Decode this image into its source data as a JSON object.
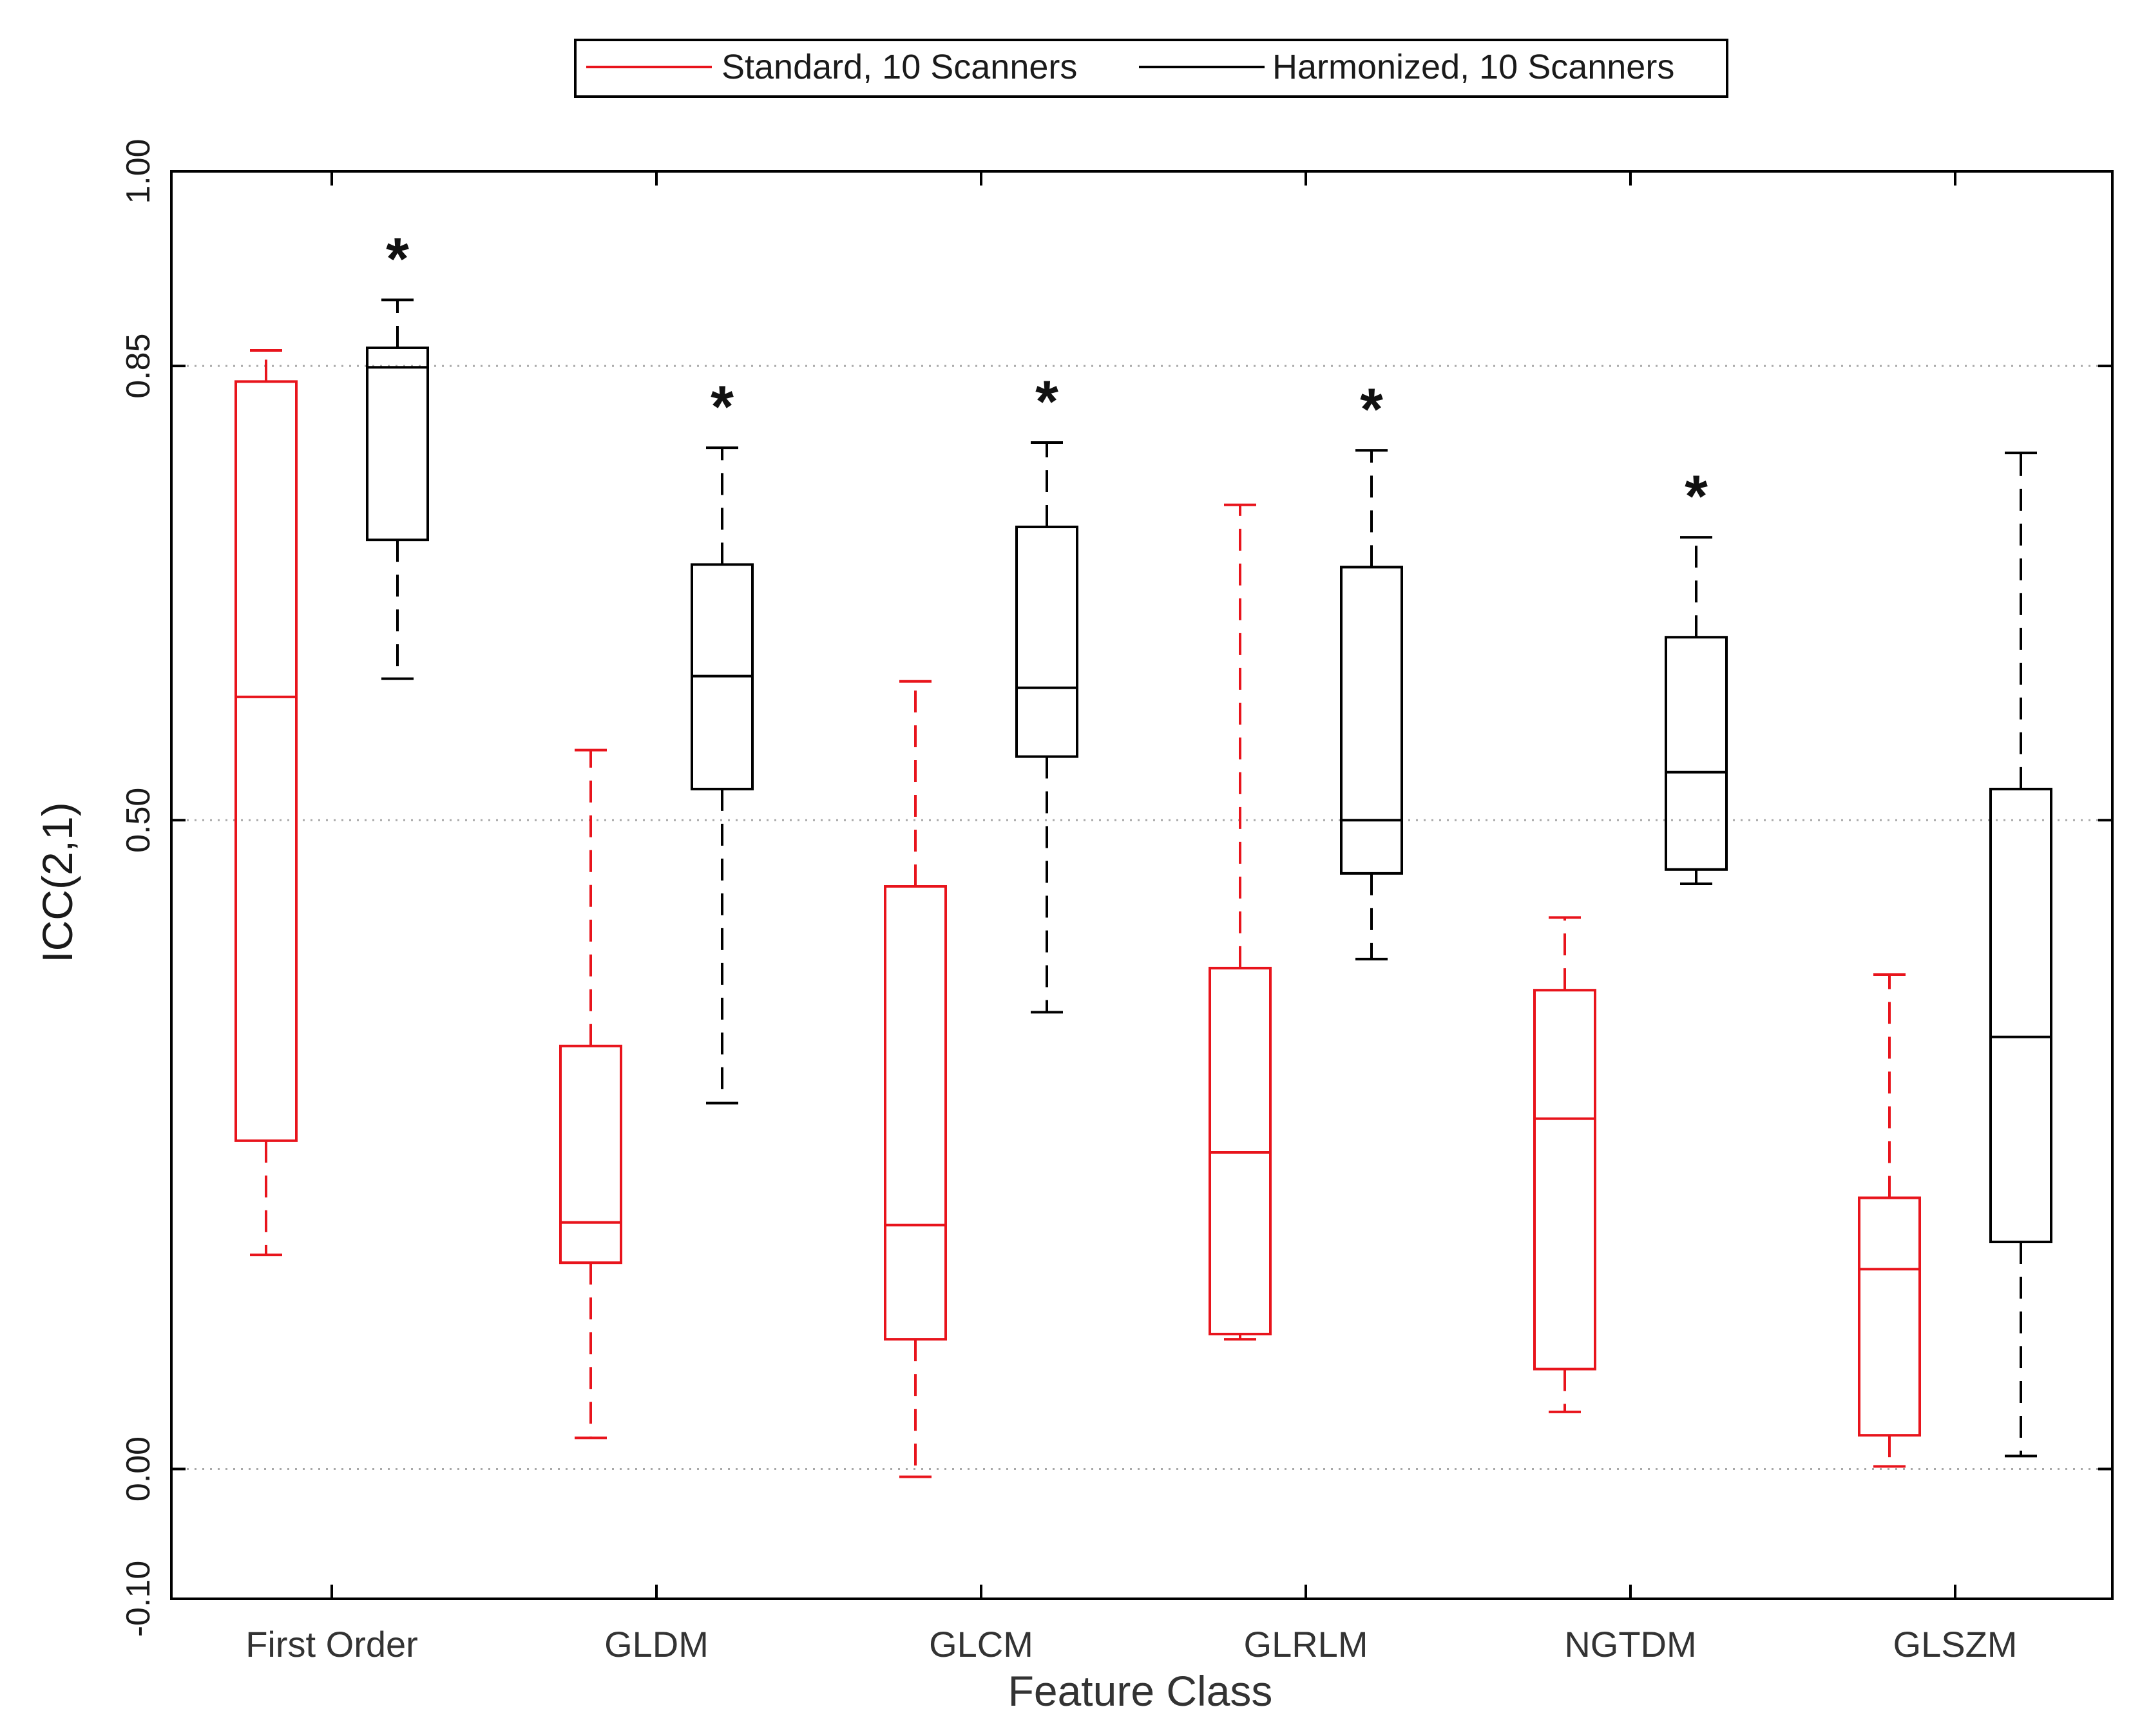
{
  "chart_data": {
    "type": "boxplot",
    "title": "",
    "xlabel": "Feature Class",
    "ylabel": "ICC(2,1)",
    "ylim": [
      -0.1,
      1.0
    ],
    "yticks": [
      -0.1,
      0.0,
      0.5,
      0.85,
      1.0
    ],
    "ytick_labels": [
      "-0.10",
      "0.00",
      "0.50",
      "0.85",
      "1.00"
    ],
    "grid_lines": [
      0.0,
      0.5,
      0.85
    ],
    "legend_position": "top-center",
    "categories": [
      "First Order",
      "GLDM",
      "GLCM",
      "GLRLM",
      "NGTDM",
      "GLSZM"
    ],
    "series": [
      {
        "name": "Standard, 10 Scanners",
        "color": "#e8141c",
        "boxes": [
          {
            "whisker_low": 0.165,
            "q1": 0.253,
            "median": 0.595,
            "q3": 0.838,
            "whisker_high": 0.862
          },
          {
            "whisker_low": 0.024,
            "q1": 0.159,
            "median": 0.19,
            "q3": 0.326,
            "whisker_high": 0.554
          },
          {
            "whisker_low": -0.006,
            "q1": 0.1,
            "median": 0.188,
            "q3": 0.449,
            "whisker_high": 0.607
          },
          {
            "whisker_low": 0.1,
            "q1": 0.104,
            "median": 0.244,
            "q3": 0.386,
            "whisker_high": 0.743
          },
          {
            "whisker_low": 0.044,
            "q1": 0.077,
            "median": 0.27,
            "q3": 0.369,
            "whisker_high": 0.425
          },
          {
            "whisker_low": 0.002,
            "q1": 0.026,
            "median": 0.154,
            "q3": 0.209,
            "whisker_high": 0.381
          }
        ],
        "significant": [
          false,
          false,
          false,
          false,
          false,
          false
        ]
      },
      {
        "name": "Harmonized, 10 Scanners",
        "color": "#000000",
        "boxes": [
          {
            "whisker_low": 0.609,
            "q1": 0.716,
            "median": 0.849,
            "q3": 0.864,
            "whisker_high": 0.901
          },
          {
            "whisker_low": 0.282,
            "q1": 0.524,
            "median": 0.611,
            "q3": 0.697,
            "whisker_high": 0.787
          },
          {
            "whisker_low": 0.352,
            "q1": 0.549,
            "median": 0.602,
            "q3": 0.726,
            "whisker_high": 0.791
          },
          {
            "whisker_low": 0.393,
            "q1": 0.459,
            "median": 0.5,
            "q3": 0.695,
            "whisker_high": 0.785
          },
          {
            "whisker_low": 0.451,
            "q1": 0.462,
            "median": 0.537,
            "q3": 0.641,
            "whisker_high": 0.718
          },
          {
            "whisker_low": 0.01,
            "q1": 0.175,
            "median": 0.333,
            "q3": 0.524,
            "whisker_high": 0.783
          }
        ],
        "significant": [
          true,
          true,
          true,
          true,
          true,
          false
        ],
        "significance_marker": "*"
      }
    ]
  }
}
